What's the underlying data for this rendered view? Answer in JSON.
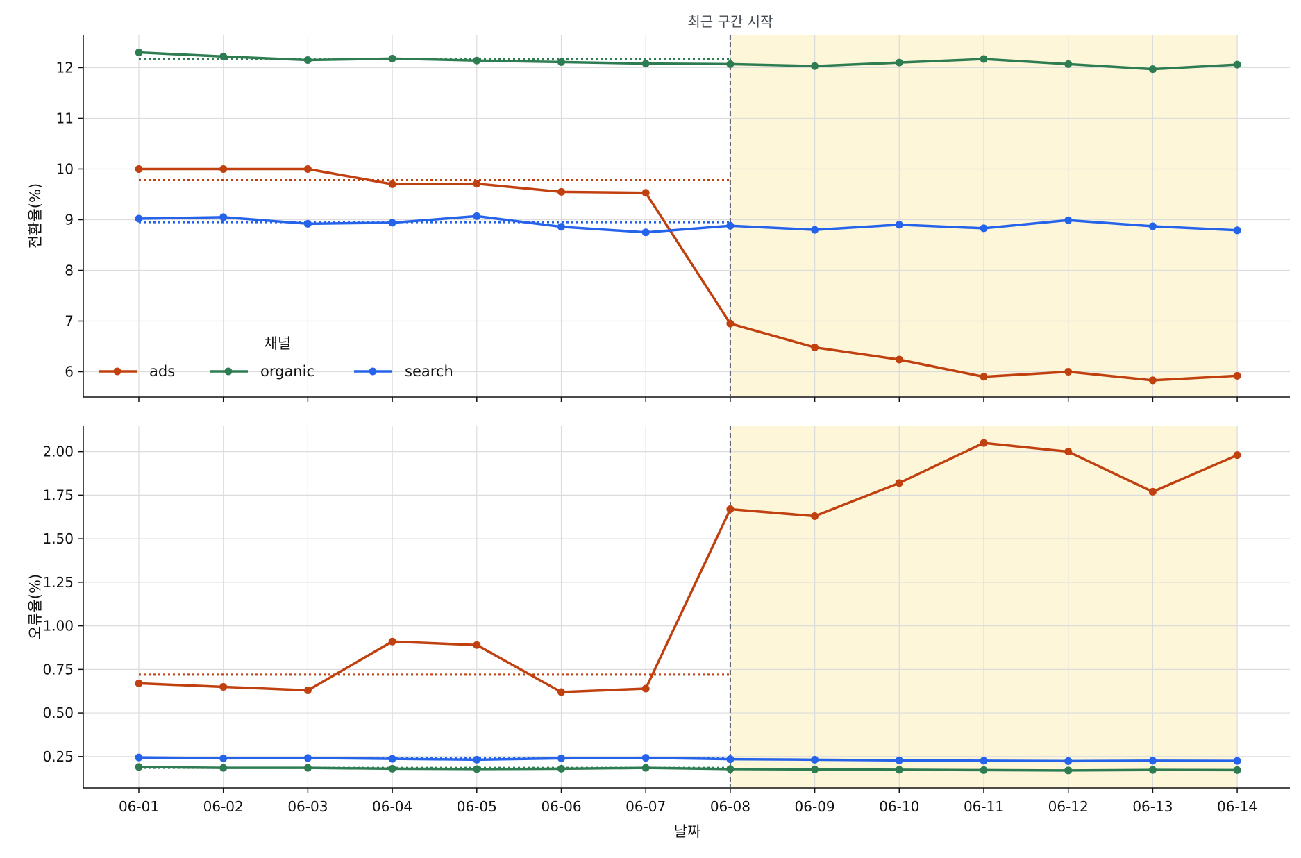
{
  "chart_data": [
    {
      "type": "line",
      "panel": "top",
      "ylabel": "전환율(%)",
      "xlabel": "",
      "ylim": [
        5.5,
        12.65
      ],
      "yticks": [
        6,
        7,
        8,
        9,
        10,
        11,
        12
      ],
      "ytick_labels": [
        "6",
        "7",
        "8",
        "9",
        "10",
        "11",
        "12"
      ],
      "grid": true,
      "annotation": "최근 구간 시작",
      "highlight_start": "06-08",
      "highlight_end": "06-14",
      "legend": {
        "title": "채널",
        "placement": "lower-left",
        "labels": [
          "ads",
          "organic",
          "search"
        ]
      },
      "series": [
        {
          "name": "ads",
          "values": [
            10.0,
            10.0,
            10.0,
            9.7,
            9.71,
            9.55,
            9.53,
            6.95,
            6.48,
            6.24,
            5.9,
            6.0,
            5.83,
            5.92
          ]
        },
        {
          "name": "organic",
          "values": [
            12.3,
            12.22,
            12.15,
            12.18,
            12.14,
            12.11,
            12.08,
            12.07,
            12.03,
            12.1,
            12.17,
            12.07,
            11.97,
            12.06
          ]
        },
        {
          "name": "search",
          "values": [
            9.02,
            9.05,
            8.92,
            8.94,
            9.07,
            8.86,
            8.75,
            8.88,
            8.8,
            8.9,
            8.83,
            8.99,
            8.87,
            8.79
          ]
        }
      ],
      "baselines": [
        {
          "name": "ads",
          "value": 9.78
        },
        {
          "name": "organic",
          "value": 12.17
        },
        {
          "name": "search",
          "value": 8.95
        }
      ]
    },
    {
      "type": "line",
      "panel": "bottom",
      "ylabel": "오류율(%)",
      "xlabel": "날짜",
      "ylim": [
        0.07,
        2.15
      ],
      "yticks": [
        0.25,
        0.5,
        0.75,
        1.0,
        1.25,
        1.5,
        1.75,
        2.0
      ],
      "ytick_labels": [
        "0.25",
        "0.50",
        "0.75",
        "1.00",
        "1.25",
        "1.50",
        "1.75",
        "2.00"
      ],
      "grid": true,
      "highlight_start": "06-08",
      "highlight_end": "06-14",
      "series": [
        {
          "name": "ads",
          "values": [
            0.67,
            0.65,
            0.63,
            0.91,
            0.89,
            0.62,
            0.64,
            1.67,
            1.63,
            1.82,
            2.05,
            2.0,
            1.77,
            1.98
          ]
        },
        {
          "name": "organic",
          "values": [
            0.19,
            0.185,
            0.185,
            0.18,
            0.178,
            0.18,
            0.185,
            0.178,
            0.176,
            0.174,
            0.172,
            0.17,
            0.173,
            0.172
          ]
        },
        {
          "name": "search",
          "values": [
            0.245,
            0.24,
            0.242,
            0.237,
            0.232,
            0.24,
            0.243,
            0.235,
            0.232,
            0.228,
            0.226,
            0.224,
            0.226,
            0.225
          ]
        }
      ],
      "baselines": [
        {
          "name": "ads",
          "value": 0.72
        },
        {
          "name": "organic",
          "value": 0.185
        },
        {
          "name": "search",
          "value": 0.24
        }
      ]
    }
  ],
  "x_categories": [
    "06-01",
    "06-02",
    "06-03",
    "06-04",
    "06-05",
    "06-06",
    "06-07",
    "06-08",
    "06-09",
    "06-10",
    "06-11",
    "06-12",
    "06-13",
    "06-14"
  ],
  "colors": {
    "ads": "#c0400f",
    "organic": "#2e7d52",
    "search": "#2563eb",
    "highlight": "#fdf6d9",
    "marker_line": "#556070",
    "grid": "#dcdcdc",
    "axis": "#111111"
  }
}
